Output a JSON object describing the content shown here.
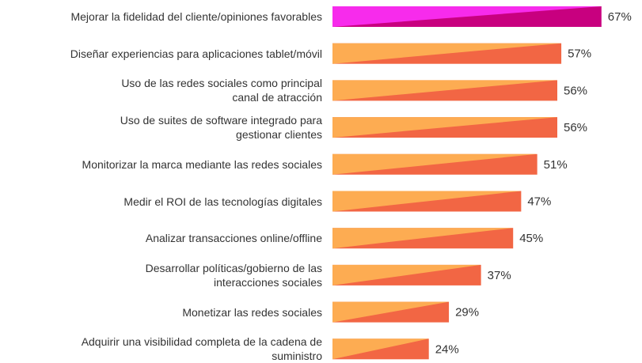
{
  "chart_data": {
    "type": "bar",
    "orientation": "horizontal",
    "categories": [
      "Mejorar la fidelidad del cliente/opiniones favorables",
      "Diseñar experiencias para aplicaciones tablet/móvil",
      "Uso de las redes sociales como principal\ncanal de atracción",
      "Uso de suites de software integrado para\ngestionar clientes",
      "Monitorizar la marca mediante las redes sociales",
      "Medir el ROI de las tecnologías digitales",
      "Analizar transacciones online/offline",
      "Desarrollar políticas/gobierno de las\ninteracciones sociales",
      "Monetizar las redes sociales",
      "Adquirir una visibilidad completa de la cadena de\nsuministro"
    ],
    "values": [
      67,
      57,
      56,
      56,
      51,
      47,
      45,
      37,
      29,
      24
    ],
    "value_labels": [
      "67%",
      "57%",
      "56%",
      "56%",
      "51%",
      "47%",
      "45%",
      "37%",
      "29%",
      "24%"
    ],
    "colors": [
      "#c8007f",
      "#f26644",
      "#f26644",
      "#f26644",
      "#f26644",
      "#f26644",
      "#f26644",
      "#f26644",
      "#f26644",
      "#f26644"
    ],
    "xlim": [
      0,
      70
    ]
  }
}
